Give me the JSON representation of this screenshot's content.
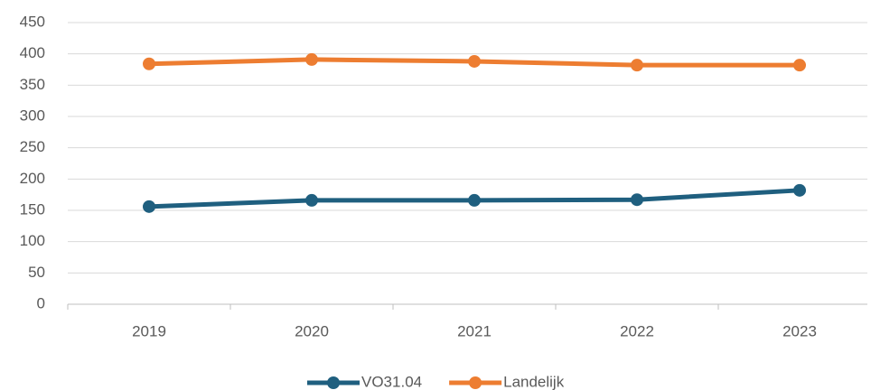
{
  "chart_data": {
    "type": "line",
    "categories": [
      "2019",
      "2020",
      "2021",
      "2022",
      "2023"
    ],
    "series": [
      {
        "name": "VO31.04",
        "color": "#1f5f7f",
        "values": [
          156,
          166,
          166,
          167,
          182
        ]
      },
      {
        "name": "Landelijk",
        "color": "#ed7d31",
        "values": [
          384,
          391,
          388,
          382,
          382
        ]
      }
    ],
    "ylim": [
      0,
      450
    ],
    "yticks": [
      0,
      50,
      100,
      150,
      200,
      250,
      300,
      350,
      400,
      450
    ],
    "grid": true,
    "legend": "bottom"
  }
}
